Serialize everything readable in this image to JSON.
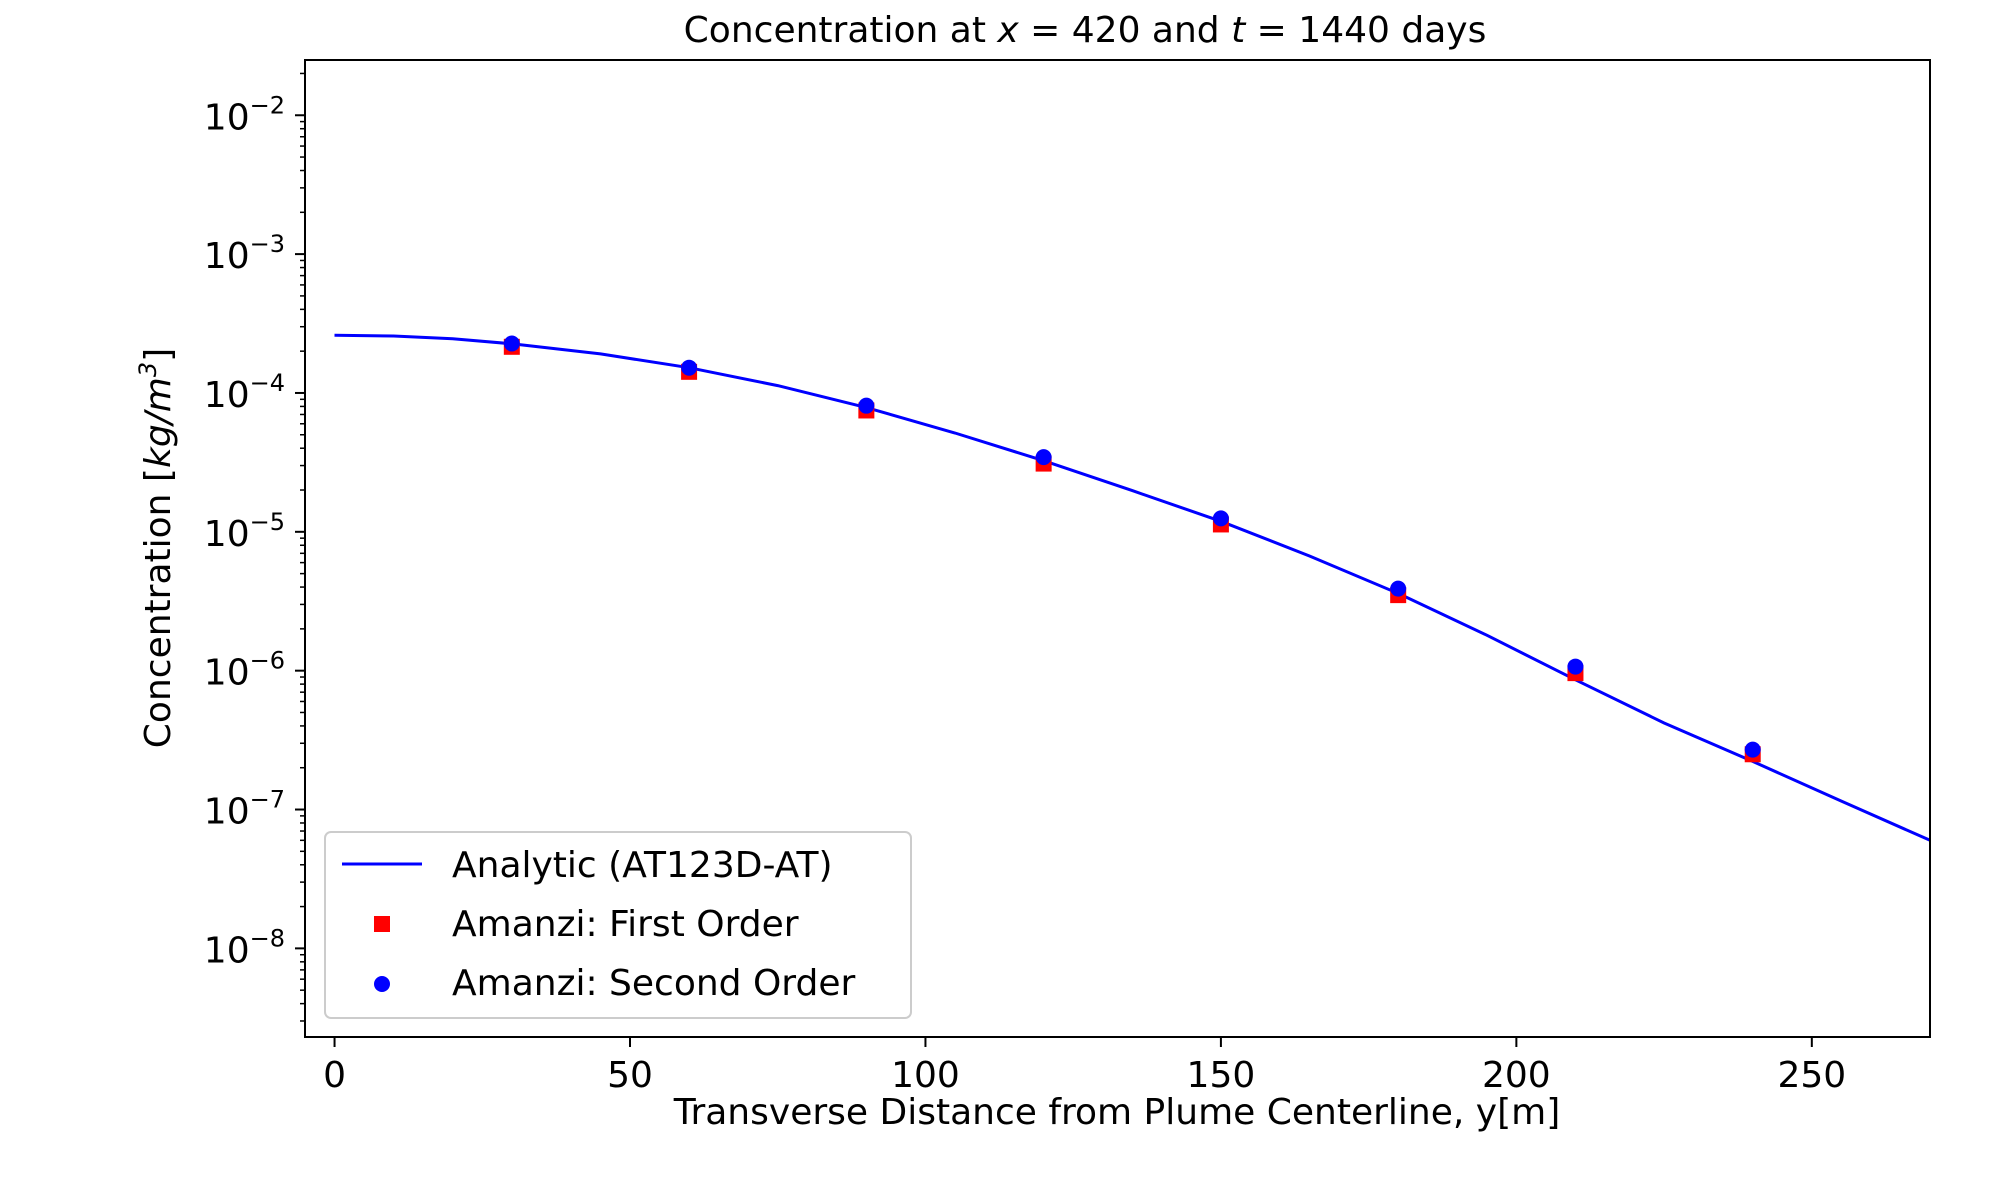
{
  "chart_data": {
    "type": "scatter",
    "title": {
      "prefix": "Concentration at ",
      "x_var": "x",
      "x_eq": " = 420 and ",
      "t_var": "t",
      "t_eq": " = 1440 days"
    },
    "xlabel": "Transverse Distance from Plume Centerline, y[m]",
    "ylabel": {
      "prefix": "Concentration [",
      "unit": "kg/m",
      "exp": "3",
      "suffix": "]"
    },
    "xlim": [
      -5,
      270
    ],
    "ylim": [
      2.3e-09,
      0.025
    ],
    "yscale": "log",
    "grid": false,
    "legend_position": "lower-left",
    "x_ticks": [
      {
        "value": 0,
        "label": "0"
      },
      {
        "value": 50,
        "label": "50"
      },
      {
        "value": 100,
        "label": "100"
      },
      {
        "value": 150,
        "label": "150"
      },
      {
        "value": 200,
        "label": "200"
      },
      {
        "value": 250,
        "label": "250"
      }
    ],
    "y_ticks": [
      {
        "value": 0.01,
        "base": "10",
        "exp": "−2"
      },
      {
        "value": 0.001,
        "base": "10",
        "exp": "−3"
      },
      {
        "value": 0.0001,
        "base": "10",
        "exp": "−4"
      },
      {
        "value": 1e-05,
        "base": "10",
        "exp": "−5"
      },
      {
        "value": 1e-06,
        "base": "10",
        "exp": "−6"
      },
      {
        "value": 1e-07,
        "base": "10",
        "exp": "−7"
      },
      {
        "value": 1e-08,
        "base": "10",
        "exp": "−8"
      }
    ],
    "series": [
      {
        "name": "Analytic (AT123D-AT)",
        "style": "line",
        "color": "#0000ff",
        "x": [
          0,
          10,
          20,
          30,
          45,
          60,
          75,
          90,
          105,
          120,
          135,
          150,
          165,
          180,
          195,
          210,
          225,
          240,
          255,
          270
        ],
        "y": [
          0.00026,
          0.000257,
          0.000246,
          0.000226,
          0.000191,
          0.000152,
          0.000113,
          7.85e-05,
          5.15e-05,
          3.25e-05,
          1.98e-05,
          1.19e-05,
          6.7e-06,
          3.6e-06,
          1.8e-06,
          8.6e-07,
          4.2e-07,
          2.22e-07,
          1.15e-07,
          6e-08
        ]
      },
      {
        "name": "Amanzi: First Order",
        "style": "square",
        "color": "#ff0000",
        "x": [
          30,
          60,
          90,
          120,
          150,
          180,
          210,
          240
        ],
        "y": [
          0.000215,
          0.000142,
          7.48e-05,
          3.1e-05,
          1.13e-05,
          3.5e-06,
          9.6e-07,
          2.5e-07
        ]
      },
      {
        "name": "Amanzi: Second Order",
        "style": "circle",
        "color": "#0000ff",
        "x": [
          30,
          60,
          90,
          120,
          150,
          180,
          210,
          240
        ],
        "y": [
          0.000227,
          0.000152,
          8.1e-05,
          3.45e-05,
          1.25e-05,
          3.9e-06,
          1.07e-06,
          2.7e-07
        ]
      }
    ]
  }
}
